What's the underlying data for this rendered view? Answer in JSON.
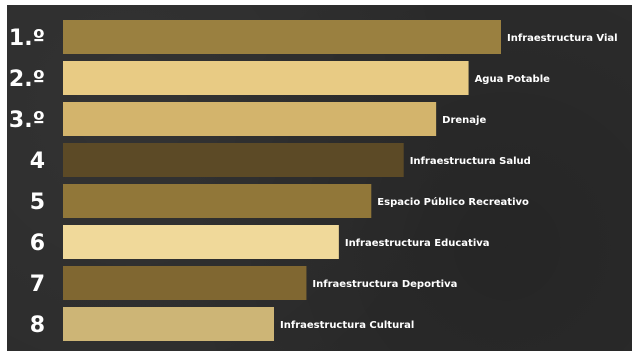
{
  "chart_data": {
    "type": "bar",
    "orientation": "horizontal",
    "categories": [
      "Infraestructura Vial",
      "Agua Potable",
      "Drenaje",
      "Infraestructura Salud",
      "Espacio Público Recreativo",
      "Infraestructura Educativa",
      "Infraestructura Deportiva",
      "Infraestructura Cultural"
    ],
    "ranks": [
      "1.º",
      "2.º",
      "3.º",
      "4",
      "5",
      "6",
      "7",
      "8"
    ],
    "values": [
      8,
      7,
      6,
      5,
      4,
      3,
      2,
      1
    ],
    "bar_colors": [
      "#9a8040",
      "#e8cb84",
      "#d3b46c",
      "#5c4a26",
      "#917739",
      "#f0d99a",
      "#806731",
      "#cdb576"
    ],
    "title": "",
    "xlabel": "",
    "ylabel": "",
    "grid": false,
    "legend": "none"
  }
}
